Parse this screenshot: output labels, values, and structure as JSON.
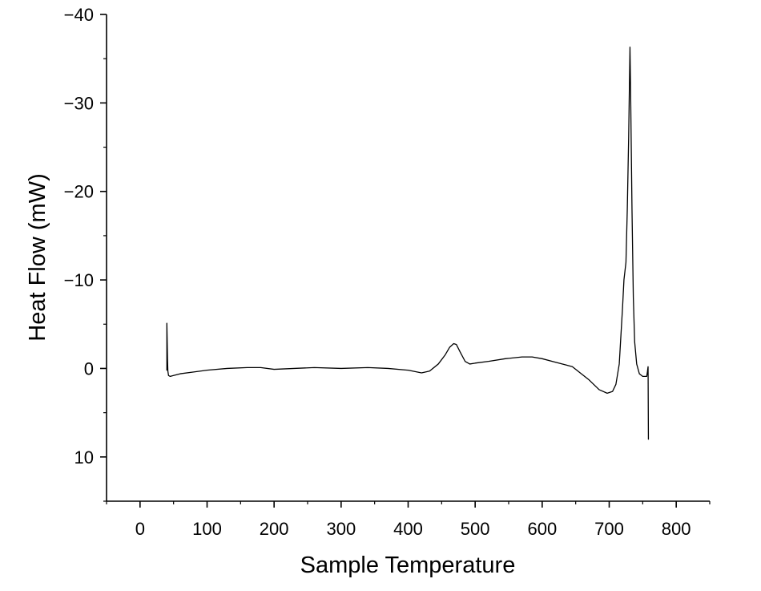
{
  "chart_data": {
    "type": "line",
    "title": "",
    "xlabel": "Sample Temperature",
    "ylabel": "Heat Flow (mW)",
    "xlim": [
      -50,
      850
    ],
    "ylim": [
      15,
      -40
    ],
    "y_axis_inverted": true,
    "x_ticks": [
      0,
      100,
      200,
      300,
      400,
      500,
      600,
      700,
      800
    ],
    "x_tick_labels": [
      "0",
      "100",
      "200",
      "300",
      "400",
      "500",
      "600",
      "700",
      "800"
    ],
    "y_ticks": [
      -40,
      -30,
      -20,
      -10,
      0,
      10
    ],
    "y_tick_labels": [
      "−40",
      "−30",
      "−20",
      "−10",
      "0",
      "10"
    ],
    "grid": false,
    "legend": "none",
    "line_color": "#000000",
    "series": [
      {
        "x": [
          40,
          40,
          41,
          41.5,
          42.5,
          45,
          50,
          60,
          80,
          100,
          130,
          160,
          180,
          200,
          230,
          260,
          300,
          340,
          370,
          400,
          420,
          432,
          445,
          455,
          462,
          468,
          472,
          478,
          485,
          492,
          500,
          520,
          545,
          570,
          585,
          600,
          620,
          635,
          645,
          655,
          670,
          685,
          697,
          705,
          710,
          715,
          720,
          722,
          725,
          727,
          729,
          731,
          732,
          734,
          736,
          738,
          741,
          745,
          750,
          756,
          757,
          758,
          758.5
        ],
        "y": [
          0.2,
          -5.1,
          -1.0,
          0.3,
          0.8,
          0.9,
          0.8,
          0.6,
          0.4,
          0.2,
          0.0,
          -0.1,
          -0.1,
          0.1,
          0.0,
          -0.1,
          0.0,
          -0.1,
          0.0,
          0.2,
          0.5,
          0.3,
          -0.5,
          -1.5,
          -2.4,
          -2.8,
          -2.7,
          -1.8,
          -0.8,
          -0.5,
          -0.6,
          -0.8,
          -1.1,
          -1.3,
          -1.3,
          -1.1,
          -0.7,
          -0.4,
          -0.2,
          0.4,
          1.3,
          2.4,
          2.8,
          2.6,
          1.8,
          -0.5,
          -7.0,
          -10.0,
          -12.0,
          -18.0,
          -26.0,
          -36.3,
          -31.0,
          -18.0,
          -8.0,
          -3.0,
          -0.5,
          0.6,
          0.9,
          0.9,
          0.4,
          -0.2,
          8.0
        ]
      }
    ]
  }
}
